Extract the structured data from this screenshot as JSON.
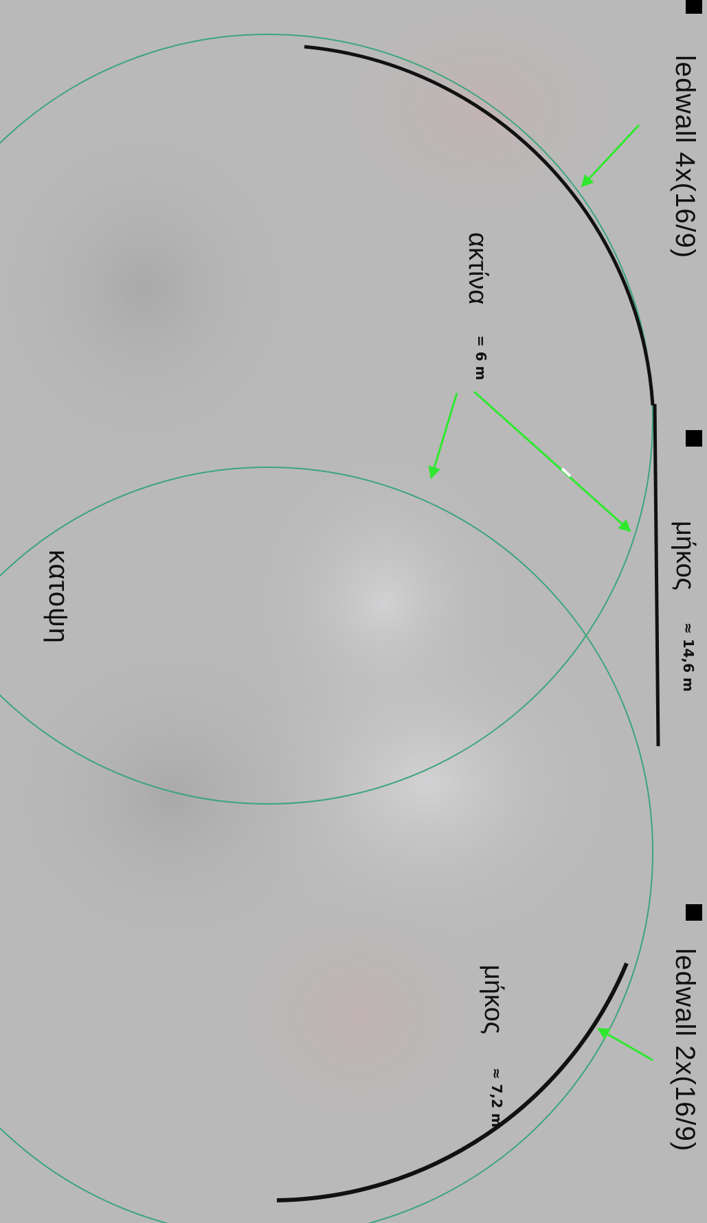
{
  "labels": {
    "ledwall_top": "ledwall 4x(16/9)",
    "ledwall_bottom": "ledwall 2x(16/9)",
    "radius_word": "ακτίνα",
    "radius_value": "= 6 m",
    "length_top_word": "μήκος",
    "length_top_value": "≈ 14,6 m",
    "length_bottom_word": "μήκος",
    "length_bottom_value": "≈ 7,2 m",
    "plan_view": "κατοψη"
  },
  "colors": {
    "background": "#b9b9b9",
    "circle": "#3aa57a",
    "arrow": "#2ee82e",
    "wall": "#111111",
    "marker": "#000000",
    "text": "#111111"
  }
}
